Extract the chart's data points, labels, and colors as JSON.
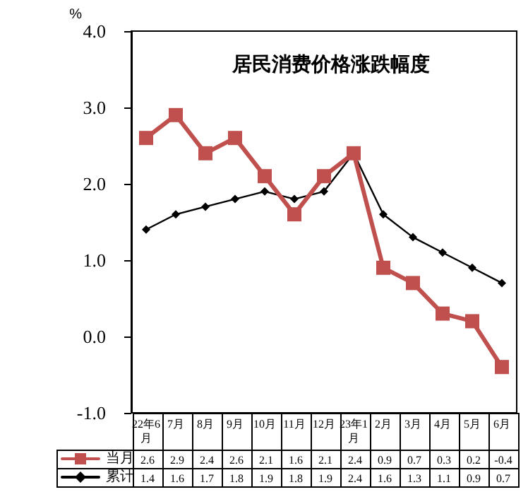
{
  "chart_data": {
    "type": "line",
    "title": "居民消费价格涨跌幅度",
    "ylabel": "%",
    "categories": [
      "22年6月",
      "7月",
      "8月",
      "9月",
      "10月",
      "11月",
      "12月",
      "23年1月",
      "2月",
      "3月",
      "4月",
      "5月",
      "6月"
    ],
    "series": [
      {
        "name": "当月",
        "color": "#c0504d",
        "marker": "square",
        "values": [
          2.6,
          2.9,
          2.4,
          2.6,
          2.1,
          1.6,
          2.1,
          2.4,
          0.9,
          0.7,
          0.3,
          0.2,
          -0.4
        ]
      },
      {
        "name": "累计",
        "color": "#000000",
        "marker": "diamond",
        "values": [
          1.4,
          1.6,
          1.7,
          1.8,
          1.9,
          1.8,
          1.9,
          2.4,
          1.6,
          1.3,
          1.1,
          0.9,
          0.7
        ]
      }
    ],
    "ylim": [
      -1,
      4
    ],
    "yticks": [
      {
        "value": -1,
        "label": "-1.0"
      },
      {
        "value": 0,
        "label": "0.0"
      },
      {
        "value": 1,
        "label": "1.0"
      },
      {
        "value": 2,
        "label": "2.0"
      },
      {
        "value": 3,
        "label": "3.0"
      },
      {
        "value": 4,
        "label": "4.0"
      }
    ],
    "grid": false,
    "legend": "bottom left",
    "data_labels": true,
    "line_style": "solid"
  }
}
